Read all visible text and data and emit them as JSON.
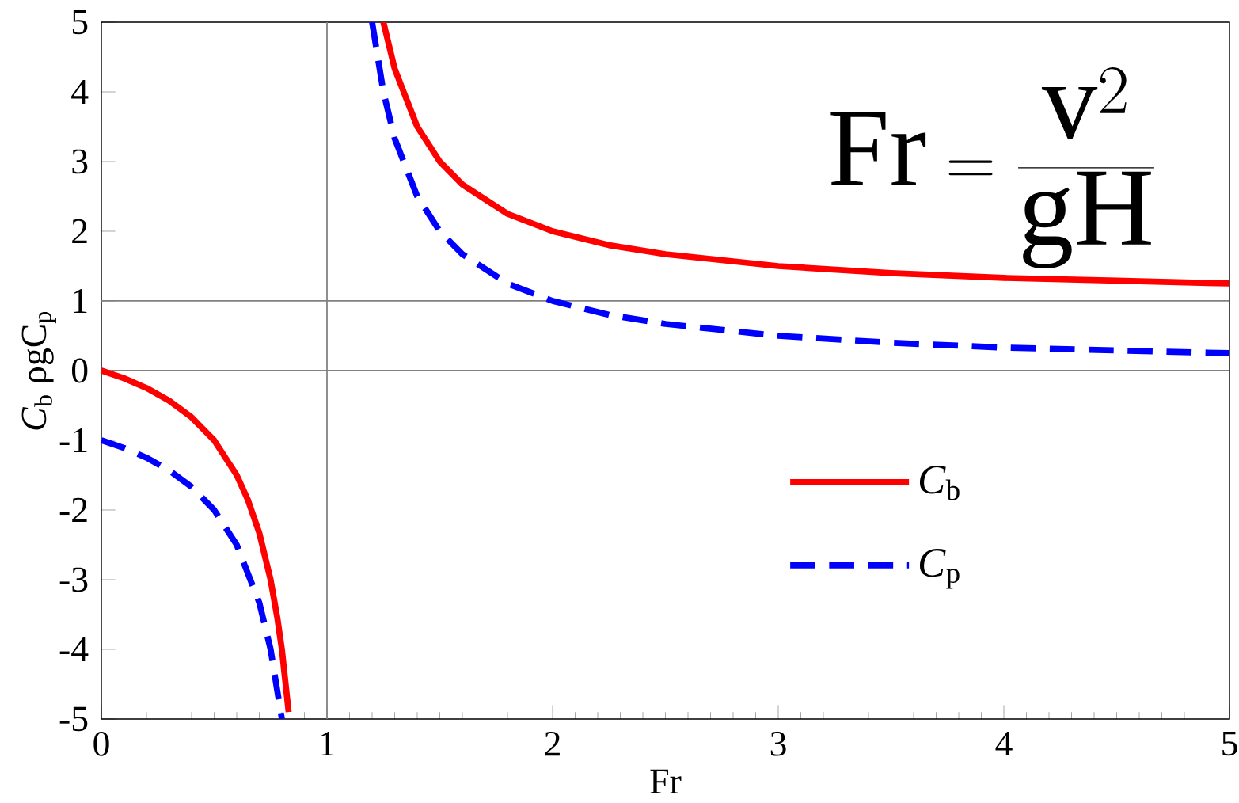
{
  "chart_data": {
    "type": "line",
    "xlabel": "Fr",
    "ylabel": "*C*$_{b}$     ρgC$_{p}$",
    "series": [
      {
        "name": "*C*$_{b}$",
        "color": "#ff0000",
        "line_style": "solid",
        "x": [
          0,
          0.1,
          0.2,
          0.3,
          0.4,
          0.5,
          0.6,
          0.65,
          0.7,
          0.75,
          0.78,
          0.8,
          0.83,
          1,
          1.25,
          1.3,
          1.4,
          1.5,
          1.6,
          1.8,
          2,
          2.25,
          2.5,
          3,
          3.5,
          4,
          4.5,
          5
        ],
        "values": [
          0,
          -0.11,
          -0.25,
          -0.43,
          -0.67,
          -1,
          -1.5,
          -1.86,
          -2.33,
          -3,
          -3.55,
          -4,
          -4.9,
          null,
          5,
          4.33,
          3.5,
          3,
          2.67,
          2.25,
          2,
          1.8,
          1.67,
          1.5,
          1.4,
          1.33,
          1.29,
          1.25
        ]
      },
      {
        "name": "*C*$_{p}$",
        "color": "#0000ff",
        "line_style": "dashed",
        "x": [
          0,
          0.1,
          0.2,
          0.3,
          0.4,
          0.5,
          0.6,
          0.7,
          0.75,
          0.8,
          1,
          1.2,
          1.25,
          1.3,
          1.4,
          1.5,
          1.6,
          1.8,
          2,
          2.25,
          2.5,
          3,
          3.5,
          4,
          4.5,
          5
        ],
        "values": [
          -1,
          -1.11,
          -1.25,
          -1.43,
          -1.67,
          -2,
          -2.5,
          -3.33,
          -4,
          -5,
          null,
          5,
          4,
          3.33,
          2.5,
          2,
          1.67,
          1.25,
          1,
          0.8,
          0.67,
          0.5,
          0.4,
          0.33,
          0.29,
          0.25
        ]
      }
    ],
    "xlim": [
      0,
      5
    ],
    "ylim": [
      -5,
      5
    ],
    "xticks": [
      0,
      1,
      2,
      3,
      4,
      5
    ],
    "yticks": [
      -5,
      -4,
      -3,
      -2,
      -1,
      0,
      1,
      2,
      3,
      4,
      5
    ],
    "ref_lines": [
      {
        "axis": "x",
        "value": 1,
        "color": "#808080"
      },
      {
        "axis": "y",
        "value": 0,
        "color": "#808080"
      },
      {
        "axis": "y",
        "value": 1,
        "color": "#808080"
      }
    ],
    "annotations": [
      "\\mathrm{Fr}=\\frac{\\mathrm{v}^{2}}{\\mathrm{gH}}"
    ],
    "legend": "bottom right",
    "grid": false,
    "marker": "none"
  }
}
